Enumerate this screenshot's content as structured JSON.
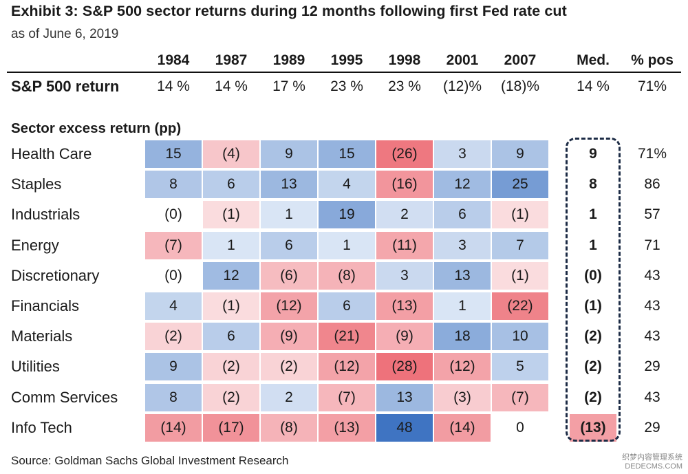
{
  "title": "Exhibit 3: S&P 500 sector returns during 12 months following first Fed rate cut",
  "subtitle": "as of June 6, 2019",
  "source": "Source:  Goldman Sachs Global Investment Research",
  "watermark": [
    "织梦内容管理系统",
    "DEDECMS.COM"
  ],
  "headers": {
    "years": [
      "1984",
      "1987",
      "1989",
      "1995",
      "1998",
      "2001",
      "2007"
    ],
    "med": "Med.",
    "pos": "% pos"
  },
  "sp500": {
    "label": "S&P 500 return",
    "values": [
      "14 %",
      "14 %",
      "17 %",
      "23 %",
      "23 %",
      "(12)%",
      "(18)%"
    ],
    "med": "14 %",
    "pos": "71%"
  },
  "section_title": "Sector excess return (pp)",
  "chart_data": {
    "type": "heatmap",
    "title": "Exhibit 3: S&P 500 sector returns during 12 months following first Fed rate cut",
    "subtitle": "as of June 6, 2019",
    "xlabel": "",
    "ylabel": "Sector excess return (pp)",
    "x": [
      "1984",
      "1987",
      "1989",
      "1995",
      "1998",
      "2001",
      "2007"
    ],
    "color_scale": {
      "negative": "#e8444f",
      "positive": "#3f74c2",
      "max_abs": 48
    },
    "rows": [
      {
        "label": "Health Care",
        "values": [
          15,
          -4,
          9,
          15,
          -26,
          3,
          9
        ],
        "display": [
          "15",
          "(4)",
          "9",
          "15",
          "(26)",
          "3",
          "9"
        ],
        "med": 9,
        "med_display": "9",
        "pos_display": "71%"
      },
      {
        "label": "Staples",
        "values": [
          8,
          6,
          13,
          4,
          -16,
          12,
          25
        ],
        "display": [
          "8",
          "6",
          "13",
          "4",
          "(16)",
          "12",
          "25"
        ],
        "med": 8,
        "med_display": "8",
        "pos_display": "86"
      },
      {
        "label": "Industrials",
        "values": [
          0,
          -1,
          1,
          19,
          2,
          6,
          -1
        ],
        "display": [
          "(0)",
          "(1)",
          "1",
          "19",
          "2",
          "6",
          "(1)"
        ],
        "med": 1,
        "med_display": "1",
        "pos_display": "57"
      },
      {
        "label": "Energy",
        "values": [
          -7,
          1,
          6,
          1,
          -11,
          3,
          7
        ],
        "display": [
          "(7)",
          "1",
          "6",
          "1",
          "(11)",
          "3",
          "7"
        ],
        "med": 1,
        "med_display": "1",
        "pos_display": "71"
      },
      {
        "label": "Discretionary",
        "values": [
          0,
          12,
          -6,
          -8,
          3,
          13,
          -1
        ],
        "display": [
          "(0)",
          "12",
          "(6)",
          "(8)",
          "3",
          "13",
          "(1)"
        ],
        "med": 0,
        "med_display": "(0)",
        "pos_display": "43"
      },
      {
        "label": "Financials",
        "values": [
          4,
          -1,
          -12,
          6,
          -13,
          1,
          -22
        ],
        "display": [
          "4",
          "(1)",
          "(12)",
          "6",
          "(13)",
          "1",
          "(22)"
        ],
        "med": -1,
        "med_display": "(1)",
        "pos_display": "43"
      },
      {
        "label": "Materials",
        "values": [
          -2,
          6,
          -9,
          -21,
          -9,
          18,
          10
        ],
        "display": [
          "(2)",
          "6",
          "(9)",
          "(21)",
          "(9)",
          "18",
          "10"
        ],
        "med": -2,
        "med_display": "(2)",
        "pos_display": "43"
      },
      {
        "label": "Utilities",
        "values": [
          9,
          -2,
          -2,
          -12,
          -28,
          -12,
          5
        ],
        "display": [
          "9",
          "(2)",
          "(2)",
          "(12)",
          "(28)",
          "(12)",
          "5"
        ],
        "med": -2,
        "med_display": "(2)",
        "pos_display": "29"
      },
      {
        "label": "Comm Services",
        "values": [
          8,
          -2,
          2,
          -7,
          13,
          -3,
          -7
        ],
        "display": [
          "8",
          "(2)",
          "2",
          "(7)",
          "13",
          "(3)",
          "(7)"
        ],
        "med": -2,
        "med_display": "(2)",
        "pos_display": "43"
      },
      {
        "label": "Info Tech",
        "values": [
          -14,
          -17,
          -8,
          -13,
          48,
          -14,
          0
        ],
        "display": [
          "(14)",
          "(17)",
          "(8)",
          "(13)",
          "48",
          "(14)",
          "0"
        ],
        "med": -13,
        "med_display": "(13)",
        "pos_display": "29"
      }
    ]
  }
}
